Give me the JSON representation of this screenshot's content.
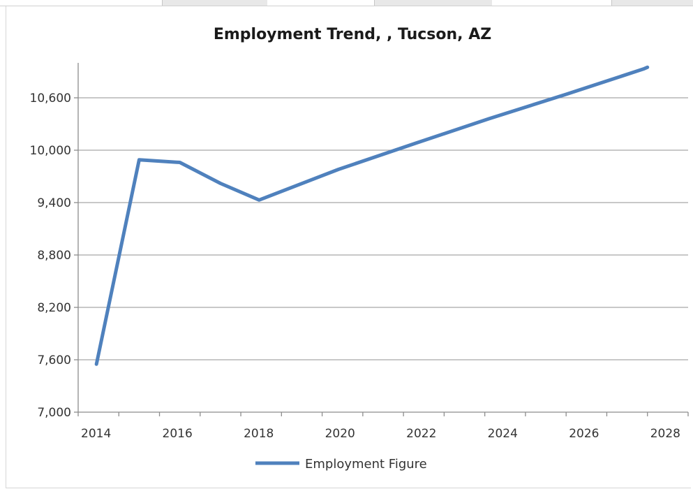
{
  "chart_data": {
    "type": "line",
    "title": "Employment Trend, , Tucson, AZ",
    "xlabel": "",
    "ylabel": "",
    "x": [
      2014,
      2015,
      2016,
      2017,
      2018,
      2019,
      2020,
      2021,
      2022,
      2023,
      2024,
      2025,
      2026,
      2027,
      2028
    ],
    "xlim": [
      2013,
      2028
    ],
    "ylim": [
      7000,
      11000
    ],
    "x_ticks": [
      "2014",
      "2016",
      "2018",
      "2020",
      "2022",
      "2024",
      "2026",
      "2028"
    ],
    "x_tick_values": [
      2013,
      2015,
      2017,
      2019,
      2021,
      2023,
      2025,
      2027
    ],
    "y_ticks": [
      "7,000",
      "7,600",
      "8,200",
      "8,800",
      "9,400",
      "10,000",
      "10,600"
    ],
    "y_tick_values": [
      7000,
      7600,
      8200,
      8800,
      9400,
      10000,
      10600
    ],
    "grid": true,
    "legend_position": "bottom",
    "series": [
      {
        "name": "Employment Figure",
        "color": "#4f81bd",
        "points": [
          [
            2013.45,
            7550
          ],
          [
            2014.5,
            9890
          ],
          [
            2015.5,
            9860
          ],
          [
            2016.5,
            9620
          ],
          [
            2017.45,
            9430
          ],
          [
            2019.4,
            9780
          ],
          [
            2021.3,
            10080
          ],
          [
            2023.1,
            10360
          ],
          [
            2025.0,
            10640
          ],
          [
            2026.9,
            10930
          ],
          [
            2027.0,
            10950
          ]
        ]
      }
    ]
  }
}
